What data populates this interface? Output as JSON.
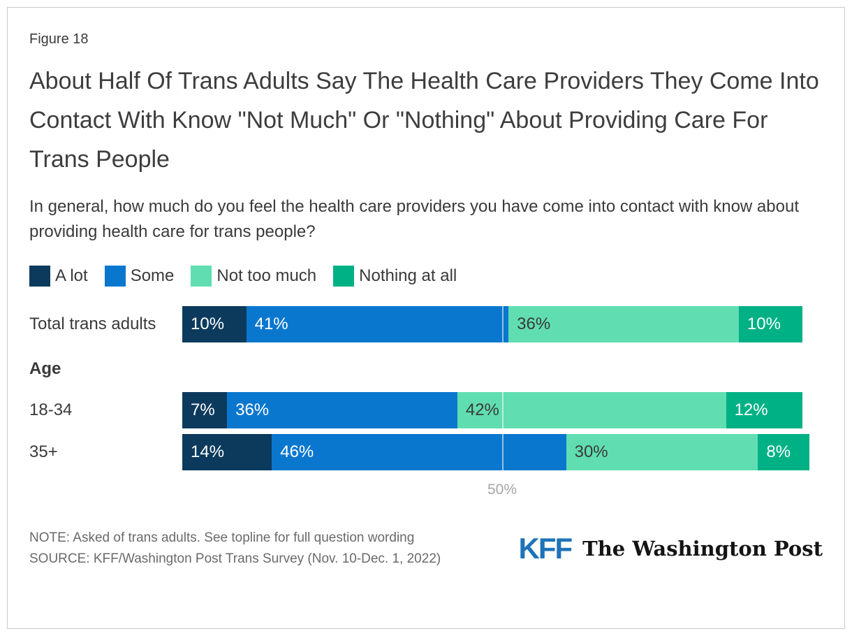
{
  "figure_label": "Figure 18",
  "title": "About Half Of Trans Adults Say The Health Care Providers They Come Into Contact With Know \"Not Much\" Or \"Nothing\" About Providing Care For Trans People",
  "subtitle": "In general, how much do you feel the health care providers you have come into contact with know about providing health care for trans people?",
  "chart_data": {
    "type": "bar",
    "stacked": true,
    "orientation": "horizontal",
    "categories": [
      "Total trans adults",
      "18-34",
      "35+"
    ],
    "group_label": "Age",
    "series": [
      {
        "name": "A lot",
        "color": "#0c3a5d",
        "label_color": "#ffffff",
        "values": [
          10,
          7,
          14
        ]
      },
      {
        "name": "Some",
        "color": "#0a77cf",
        "label_color": "#ffffff",
        "values": [
          41,
          36,
          46
        ]
      },
      {
        "name": "Not too much",
        "color": "#60deb2",
        "label_color": "#3a3a3a",
        "values": [
          36,
          42,
          30
        ]
      },
      {
        "name": "Nothing at all",
        "color": "#00b185",
        "label_color": "#ffffff",
        "values": [
          10,
          12,
          8
        ]
      }
    ],
    "axis": {
      "xlim": [
        0,
        100
      ],
      "tick_label": "50%",
      "gridline_at": 50
    },
    "legend_position": "top",
    "value_suffix": "%"
  },
  "note": "NOTE: Asked of trans adults. See topline for full question wording",
  "source": "SOURCE: KFF/Washington Post Trans Survey (Nov. 10-Dec. 1, 2022)",
  "logos": {
    "kff_text": "KFF",
    "kff_color": "#1e73b9",
    "wapo_text": "The Washington Post"
  }
}
